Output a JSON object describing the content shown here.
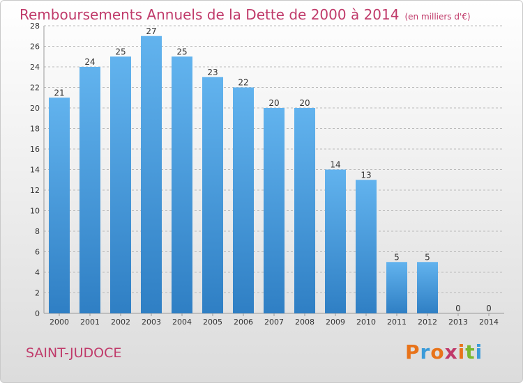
{
  "header": {
    "title": "Remboursements Annuels de la Dette de 2000 à 2014",
    "unit": "(en milliers d'€)"
  },
  "footer": {
    "commune": "SAINT-JUDOCE",
    "logo_text": "Proxiti",
    "logo_colors": [
      "#e8731a",
      "#3a9bd9",
      "#e8731a",
      "#c03a6a",
      "#e8731a",
      "#7ab82f",
      "#3a9bd9"
    ]
  },
  "colors": {
    "title": "#c03a6a",
    "bar_light": "#62b3ee",
    "bar_dark": "#2f7fc4",
    "grid": "#bbbbbb",
    "tick_text": "#333333"
  },
  "chart_data": {
    "type": "bar",
    "categories": [
      "2000",
      "2001",
      "2002",
      "2003",
      "2004",
      "2005",
      "2006",
      "2007",
      "2008",
      "2009",
      "2010",
      "2011",
      "2012",
      "2013",
      "2014"
    ],
    "values": [
      21,
      24,
      25,
      27,
      25,
      23,
      22,
      20,
      20,
      14,
      13,
      5,
      5,
      0,
      0
    ],
    "ylim": [
      0,
      28
    ],
    "yticks": [
      0,
      2,
      4,
      6,
      8,
      10,
      12,
      14,
      16,
      18,
      20,
      22,
      24,
      26,
      28
    ],
    "grid": true,
    "data_labels": true
  }
}
